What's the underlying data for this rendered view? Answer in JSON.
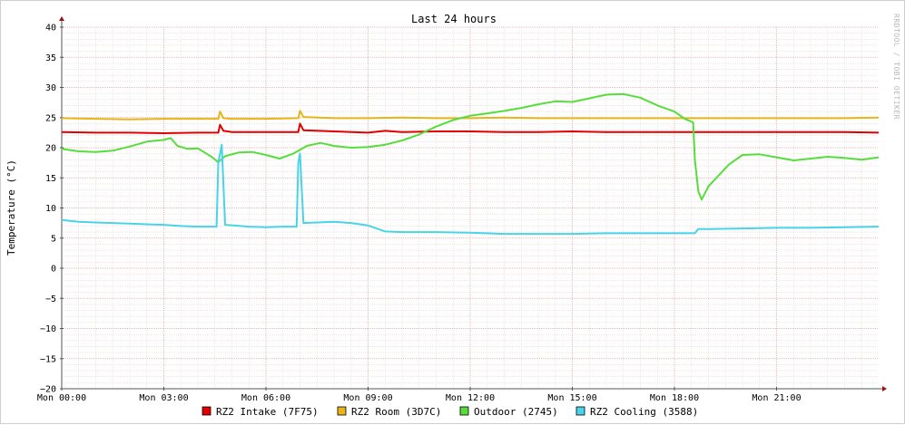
{
  "chart_data": {
    "type": "line",
    "title": "Last 24 hours",
    "ylabel": "Temperature (°C)",
    "xlabel": "",
    "ylim": [
      -20,
      40
    ],
    "yticks": [
      40,
      35,
      30,
      25,
      20,
      15,
      10,
      5,
      0,
      -5,
      -10,
      -15,
      -20
    ],
    "xlim_hours": [
      0,
      24
    ],
    "xticks": [
      {
        "hour": 0,
        "label": "Mon 00:00"
      },
      {
        "hour": 3,
        "label": "Mon 03:00"
      },
      {
        "hour": 6,
        "label": "Mon 06:00"
      },
      {
        "hour": 9,
        "label": "Mon 09:00"
      },
      {
        "hour": 12,
        "label": "Mon 12:00"
      },
      {
        "hour": 15,
        "label": "Mon 15:00"
      },
      {
        "hour": 18,
        "label": "Mon 18:00"
      },
      {
        "hour": 21,
        "label": "Mon 21:00"
      }
    ],
    "grid": true,
    "legend_position": "bottom",
    "watermark": "RRDTOOL / TOBI OETIKER",
    "x_unit": "hours",
    "series": [
      {
        "name": "RZ2 Intake (7F75)",
        "color": "#e00000",
        "points": [
          [
            0,
            22.6
          ],
          [
            1,
            22.5
          ],
          [
            2,
            22.5
          ],
          [
            3,
            22.4
          ],
          [
            4,
            22.5
          ],
          [
            4.6,
            22.5
          ],
          [
            4.65,
            23.8
          ],
          [
            4.75,
            22.8
          ],
          [
            5,
            22.6
          ],
          [
            6,
            22.6
          ],
          [
            6.95,
            22.6
          ],
          [
            7.0,
            24.0
          ],
          [
            7.1,
            22.9
          ],
          [
            8,
            22.7
          ],
          [
            9,
            22.5
          ],
          [
            9.5,
            22.8
          ],
          [
            10,
            22.6
          ],
          [
            11,
            22.7
          ],
          [
            12,
            22.7
          ],
          [
            13,
            22.6
          ],
          [
            14,
            22.6
          ],
          [
            15,
            22.7
          ],
          [
            16,
            22.6
          ],
          [
            17,
            22.6
          ],
          [
            18,
            22.6
          ],
          [
            18.6,
            22.6
          ],
          [
            19,
            22.6
          ],
          [
            20,
            22.6
          ],
          [
            21,
            22.6
          ],
          [
            22,
            22.6
          ],
          [
            23,
            22.6
          ],
          [
            24,
            22.5
          ]
        ]
      },
      {
        "name": "RZ2 Room (3D7C)",
        "color": "#e8b418",
        "points": [
          [
            0,
            24.9
          ],
          [
            1,
            24.8
          ],
          [
            2,
            24.7
          ],
          [
            3,
            24.8
          ],
          [
            4,
            24.8
          ],
          [
            4.6,
            24.8
          ],
          [
            4.65,
            26.0
          ],
          [
            4.75,
            24.9
          ],
          [
            5,
            24.8
          ],
          [
            6,
            24.8
          ],
          [
            6.95,
            24.9
          ],
          [
            7.0,
            26.1
          ],
          [
            7.1,
            25.1
          ],
          [
            8,
            24.9
          ],
          [
            9,
            24.9
          ],
          [
            10,
            25.0
          ],
          [
            11,
            24.9
          ],
          [
            12,
            24.9
          ],
          [
            13,
            25.0
          ],
          [
            14,
            24.9
          ],
          [
            15,
            24.9
          ],
          [
            16,
            24.9
          ],
          [
            17,
            24.9
          ],
          [
            18,
            24.9
          ],
          [
            18.6,
            24.9
          ],
          [
            19,
            24.9
          ],
          [
            20,
            24.9
          ],
          [
            21,
            24.9
          ],
          [
            22,
            24.9
          ],
          [
            23,
            24.9
          ],
          [
            24,
            25.0
          ]
        ]
      },
      {
        "name": "Outdoor (2745)",
        "color": "#55dd3a",
        "points": [
          [
            0,
            19.8
          ],
          [
            0.5,
            19.4
          ],
          [
            1,
            19.3
          ],
          [
            1.5,
            19.5
          ],
          [
            2,
            20.2
          ],
          [
            2.5,
            21.0
          ],
          [
            3,
            21.3
          ],
          [
            3.2,
            21.6
          ],
          [
            3.4,
            20.3
          ],
          [
            3.7,
            19.8
          ],
          [
            4,
            19.9
          ],
          [
            4.4,
            18.5
          ],
          [
            4.6,
            17.6
          ],
          [
            4.8,
            18.6
          ],
          [
            5.2,
            19.2
          ],
          [
            5.6,
            19.3
          ],
          [
            6,
            18.8
          ],
          [
            6.4,
            18.2
          ],
          [
            6.8,
            19.0
          ],
          [
            7.2,
            20.3
          ],
          [
            7.6,
            20.8
          ],
          [
            8,
            20.3
          ],
          [
            8.5,
            20.0
          ],
          [
            9,
            20.1
          ],
          [
            9.5,
            20.5
          ],
          [
            10,
            21.2
          ],
          [
            10.5,
            22.2
          ],
          [
            11,
            23.5
          ],
          [
            11.5,
            24.6
          ],
          [
            12,
            25.3
          ],
          [
            12.5,
            25.7
          ],
          [
            13,
            26.1
          ],
          [
            13.5,
            26.6
          ],
          [
            14,
            27.2
          ],
          [
            14.5,
            27.7
          ],
          [
            15,
            27.6
          ],
          [
            15.5,
            28.2
          ],
          [
            16,
            28.8
          ],
          [
            16.5,
            28.9
          ],
          [
            17,
            28.3
          ],
          [
            17.5,
            27.0
          ],
          [
            18,
            26.0
          ],
          [
            18.3,
            24.8
          ],
          [
            18.55,
            24.2
          ],
          [
            18.6,
            18.0
          ],
          [
            18.7,
            12.8
          ],
          [
            18.8,
            11.4
          ],
          [
            19.0,
            13.6
          ],
          [
            19.3,
            15.4
          ],
          [
            19.6,
            17.2
          ],
          [
            20,
            18.8
          ],
          [
            20.5,
            18.9
          ],
          [
            21,
            18.4
          ],
          [
            21.5,
            17.9
          ],
          [
            22,
            18.2
          ],
          [
            22.5,
            18.5
          ],
          [
            23,
            18.3
          ],
          [
            23.5,
            18.0
          ],
          [
            24,
            18.4
          ]
        ]
      },
      {
        "name": "RZ2 Cooling (3588)",
        "color": "#48d4e8",
        "points": [
          [
            0,
            8.0
          ],
          [
            0.5,
            7.7
          ],
          [
            1,
            7.6
          ],
          [
            1.5,
            7.5
          ],
          [
            2,
            7.4
          ],
          [
            2.5,
            7.3
          ],
          [
            3,
            7.2
          ],
          [
            3.5,
            7.0
          ],
          [
            4,
            6.9
          ],
          [
            4.55,
            6.9
          ],
          [
            4.6,
            17.5
          ],
          [
            4.7,
            20.5
          ],
          [
            4.8,
            7.2
          ],
          [
            5.5,
            6.9
          ],
          [
            6,
            6.8
          ],
          [
            6.5,
            6.9
          ],
          [
            6.9,
            6.9
          ],
          [
            6.95,
            17.5
          ],
          [
            7.0,
            19.0
          ],
          [
            7.1,
            7.5
          ],
          [
            7.5,
            7.6
          ],
          [
            8,
            7.7
          ],
          [
            8.5,
            7.5
          ],
          [
            9,
            7.1
          ],
          [
            9.5,
            6.1
          ],
          [
            10,
            6.0
          ],
          [
            11,
            6.0
          ],
          [
            12,
            5.9
          ],
          [
            13,
            5.7
          ],
          [
            14,
            5.7
          ],
          [
            15,
            5.7
          ],
          [
            16,
            5.8
          ],
          [
            17,
            5.8
          ],
          [
            18,
            5.8
          ],
          [
            18.6,
            5.8
          ],
          [
            18.7,
            6.5
          ],
          [
            19,
            6.5
          ],
          [
            20,
            6.6
          ],
          [
            21,
            6.7
          ],
          [
            22,
            6.7
          ],
          [
            23,
            6.8
          ],
          [
            24,
            6.9
          ]
        ]
      }
    ]
  }
}
